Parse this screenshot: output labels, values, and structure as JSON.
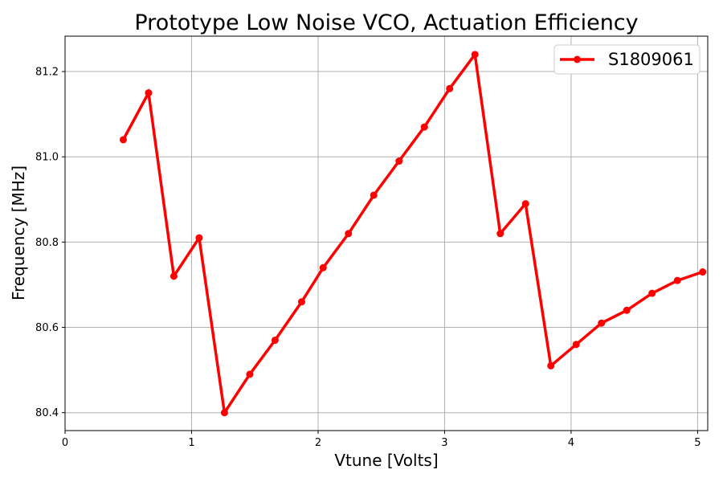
{
  "chart_data": {
    "type": "line",
    "title": "Prototype Low Noise VCO, Actuation Efficiency",
    "xlabel": "Vtune [Volts]",
    "ylabel": "Frequency [MHz]",
    "xlim": [
      0,
      5.08
    ],
    "ylim": [
      80.358,
      81.283
    ],
    "xticks": [
      0,
      1,
      2,
      3,
      4,
      5
    ],
    "xtick_labels": [
      "0",
      "1",
      "2",
      "3",
      "4",
      "5"
    ],
    "yticks": [
      80.4,
      80.6,
      80.8,
      81.0,
      81.2
    ],
    "ytick_labels": [
      "80.4",
      "80.6",
      "80.8",
      "81.0",
      "81.2"
    ],
    "grid": true,
    "legend_position": "top-right",
    "series": [
      {
        "name": "S1809061",
        "color": "#ff0000",
        "marker": "circle",
        "x": [
          0.46,
          0.66,
          0.86,
          1.06,
          1.26,
          1.46,
          1.66,
          1.87,
          2.04,
          2.24,
          2.44,
          2.64,
          2.84,
          3.04,
          3.24,
          3.44,
          3.64,
          3.84,
          4.04,
          4.24,
          4.44,
          4.64,
          4.84,
          5.04
        ],
        "y": [
          81.04,
          81.15,
          80.72,
          80.81,
          80.4,
          80.49,
          80.57,
          80.66,
          80.74,
          80.82,
          80.91,
          80.99,
          81.07,
          81.16,
          81.24,
          80.82,
          80.89,
          80.51,
          80.56,
          80.61,
          80.64,
          80.68,
          80.71,
          80.73
        ]
      }
    ]
  }
}
